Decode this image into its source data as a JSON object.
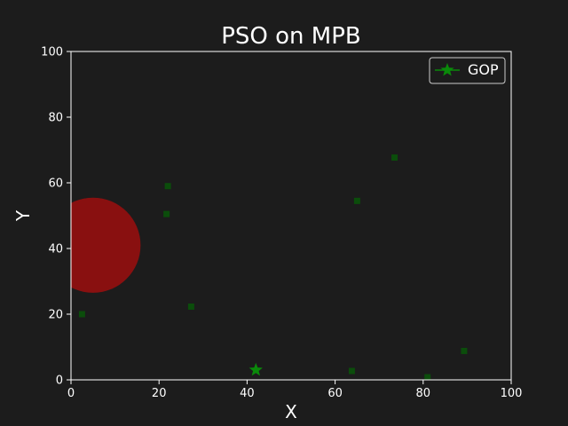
{
  "chart_data": {
    "type": "scatter",
    "title": "PSO on MPB",
    "xlabel": "X",
    "ylabel": "Y",
    "xlim": [
      0,
      100
    ],
    "ylim": [
      0,
      100
    ],
    "xticks": [
      0,
      20,
      40,
      60,
      80,
      100
    ],
    "yticks": [
      0,
      20,
      40,
      60,
      80,
      100
    ],
    "grid": false,
    "legend_position": "top-right",
    "colors": {
      "background": "#1c1c1c",
      "axes": "#ffffff",
      "particle": "#0b4d0b",
      "gop": "#0a8a0a",
      "peak": "#8f1010"
    },
    "peak": {
      "x": 5,
      "y": 41,
      "radius": 12
    },
    "particles": [
      {
        "x": 2.5,
        "y": 20
      },
      {
        "x": 22,
        "y": 59
      },
      {
        "x": 21.7,
        "y": 50.5
      },
      {
        "x": 27.3,
        "y": 22.3
      },
      {
        "x": 65,
        "y": 54.5
      },
      {
        "x": 73.5,
        "y": 67.7
      },
      {
        "x": 63.8,
        "y": 2.7
      },
      {
        "x": 81,
        "y": 0.8
      },
      {
        "x": 89.3,
        "y": 8.8
      }
    ],
    "gop": {
      "name": "GOP",
      "x": 42,
      "y": 3
    }
  }
}
